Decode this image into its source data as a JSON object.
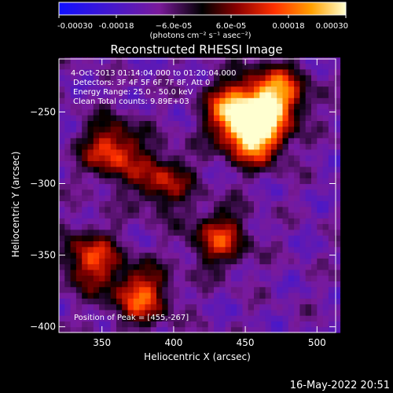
{
  "chart_data": {
    "type": "heatmap",
    "title": "Reconstructed RHESSI Image",
    "xlabel": "Heliocentric X (arcsec)",
    "ylabel": "Heliocentric Y (arcsec)",
    "xlim": [
      320,
      513
    ],
    "ylim": [
      -404,
      -213
    ],
    "xticks": [
      350,
      400,
      450,
      500
    ],
    "yticks": [
      -250,
      -300,
      -350,
      -400
    ],
    "colorbar": {
      "min": -0.0003,
      "max": 0.0003,
      "tick_values": [
        -0.0003,
        -0.00018,
        -6e-05,
        6e-05,
        0.00018,
        0.0003
      ],
      "tick_labels": [
        "-0.00030",
        "-0.00018",
        "−6.0e-05",
        "6.0e-05",
        "0.00018",
        "0.00030"
      ],
      "unit_label": "(photons cm⁻² s⁻¹ asec⁻²)"
    },
    "annotations": [
      "4-Oct-2013 01:14:04.000 to 01:20:04.000",
      "Detectors: 3F 4F 5F 6F 7F 8F, Att 0",
      "Energy Range: 25.0 - 50.0 keV",
      "Clean     Total counts: 9.89E+03"
    ],
    "peak": {
      "x": 455,
      "y": -267,
      "label": "Position of Peak = [455,-267]"
    },
    "bright_regions": [
      {
        "x": 455,
        "y": -267,
        "value": 0.0003
      },
      {
        "x": 470,
        "y": -240,
        "value": 0.00022
      },
      {
        "x": 440,
        "y": -250,
        "value": 0.0002
      },
      {
        "x": 355,
        "y": -278,
        "value": 0.00016
      },
      {
        "x": 375,
        "y": -380,
        "value": 0.00016
      },
      {
        "x": 340,
        "y": -355,
        "value": 0.00014
      },
      {
        "x": 430,
        "y": -340,
        "value": 0.00012
      },
      {
        "x": 390,
        "y": -300,
        "value": 0.0001
      }
    ]
  },
  "timestamp": "16-May-2022 20:51"
}
